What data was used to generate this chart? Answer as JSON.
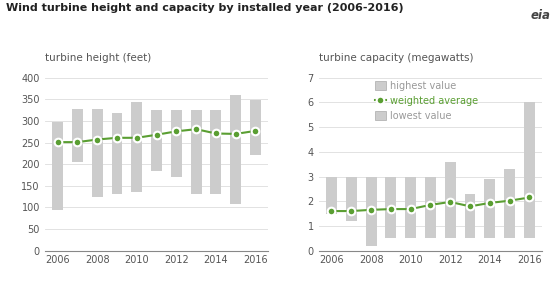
{
  "title": "Wind turbine height and capacity by installed year (2006-2016)",
  "subtitle_left": "turbine height (feet)",
  "subtitle_right": "turbine capacity (megawatts)",
  "years": [
    2006,
    2007,
    2008,
    2009,
    2010,
    2011,
    2012,
    2013,
    2014,
    2015,
    2016
  ],
  "height_high": [
    298,
    328,
    328,
    318,
    344,
    325,
    325,
    325,
    325,
    360,
    348
  ],
  "height_avg": [
    251,
    251,
    257,
    261,
    261,
    268,
    276,
    281,
    271,
    270,
    277
  ],
  "height_low": [
    95,
    206,
    123,
    131,
    135,
    185,
    170,
    131,
    131,
    108,
    222
  ],
  "cap_high": [
    3.0,
    3.0,
    3.0,
    3.0,
    3.0,
    3.0,
    3.6,
    2.3,
    2.9,
    3.3,
    6.0
  ],
  "cap_avg": [
    1.6,
    1.6,
    1.65,
    1.68,
    1.68,
    1.85,
    1.97,
    1.79,
    1.93,
    2.02,
    2.15
  ],
  "cap_low": [
    1.5,
    1.2,
    0.2,
    0.5,
    0.5,
    0.5,
    0.5,
    0.5,
    0.5,
    0.5,
    0.5
  ],
  "bar_color": "#cccccc",
  "line_color": "#5a9e32",
  "dot_color": "#5a9e32",
  "dot_edge_color": "#ffffff",
  "bg_color": "#ffffff",
  "legend_items": [
    "highest value",
    "weighted average",
    "lowest value"
  ],
  "legend_gray": "#999999",
  "ylim_left": [
    0,
    400
  ],
  "yticks_left": [
    0,
    50,
    100,
    150,
    200,
    250,
    300,
    350,
    400
  ],
  "ylim_right": [
    0,
    7
  ],
  "yticks_right": [
    0,
    1,
    2,
    3,
    4,
    5,
    6,
    7
  ],
  "title_color": "#222222",
  "subtitle_color": "#555555",
  "tick_color": "#555555",
  "grid_color": "#dddddd",
  "spine_color": "#888888"
}
